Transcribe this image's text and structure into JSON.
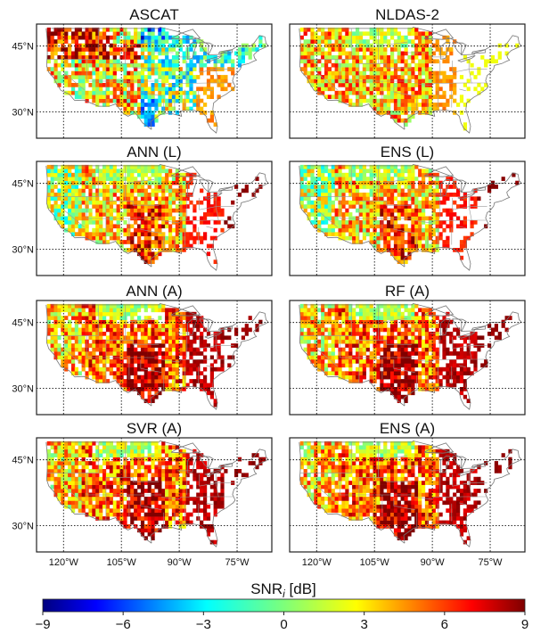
{
  "figure": {
    "colorbar_title": "SNR",
    "colorbar_title_subscript": "i",
    "colorbar_title_units": " [dB]"
  },
  "chart_data": {
    "type": "heatmap",
    "colormap": "jet",
    "vmin": -9,
    "vmax": 9,
    "colorbar_ticks": [
      -9,
      -6,
      -3,
      0,
      3,
      6,
      9
    ],
    "colorbar_tick_labels": [
      "−9",
      "−6",
      "−3",
      "0",
      "3",
      "6",
      "9"
    ],
    "map_extent": {
      "lon": [
        -127,
        -66
      ],
      "lat": [
        24,
        50
      ]
    },
    "lat_gridlines": [
      30,
      45
    ],
    "lat_labels": [
      "30°N",
      "45°N"
    ],
    "lon_gridlines": [
      -120,
      -105,
      -90,
      -75
    ],
    "lon_labels": [
      "120°W",
      "105°W",
      "90°W",
      "75°W"
    ],
    "panels": [
      {
        "title": "ASCAT",
        "pattern": "ascat"
      },
      {
        "title": "NLDAS-2",
        "pattern": "nldas"
      },
      {
        "title": "ANN (L)",
        "pattern": "model_low"
      },
      {
        "title": "ENS (L)",
        "pattern": "model_low"
      },
      {
        "title": "ANN (A)",
        "pattern": "model_high"
      },
      {
        "title": "RF (A)",
        "pattern": "model_high"
      },
      {
        "title": "SVR (A)",
        "pattern": "model_high"
      },
      {
        "title": "ENS (A)",
        "pattern": "model_high"
      }
    ]
  }
}
